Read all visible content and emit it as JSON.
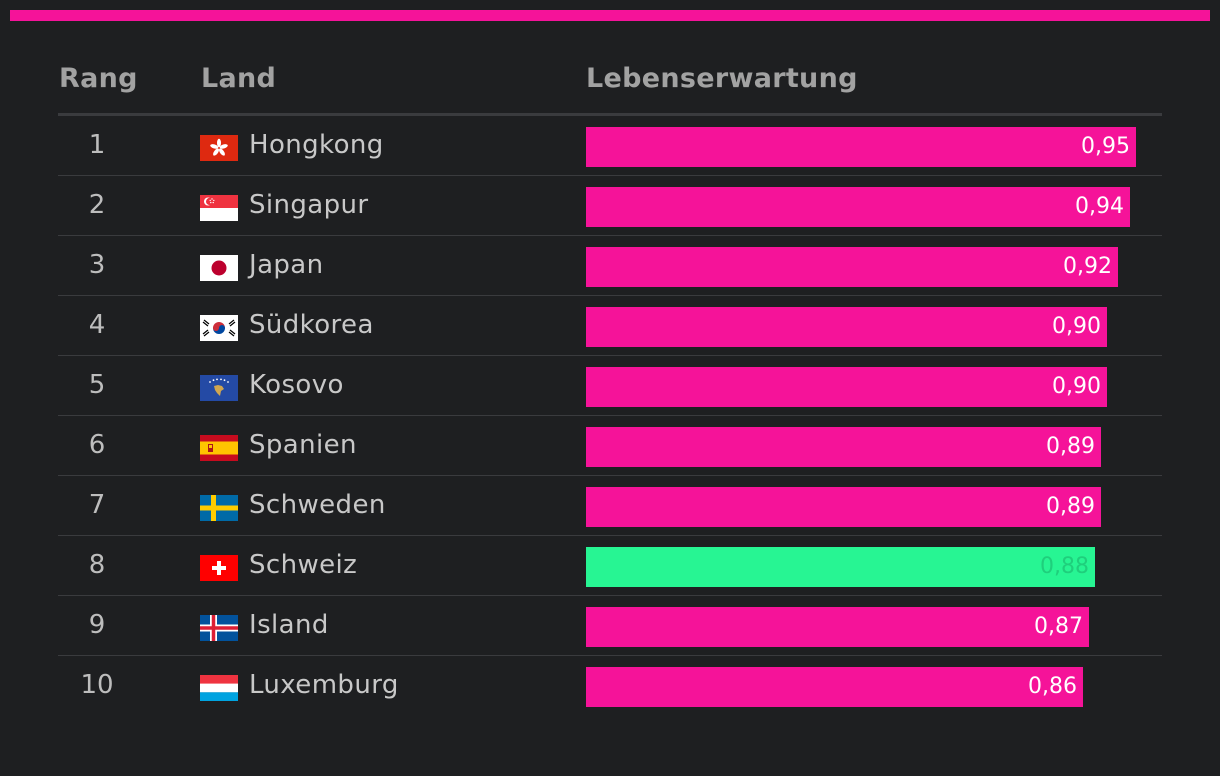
{
  "colors": {
    "accent": "#f51399",
    "highlight": "#27f593",
    "background": "#1e1f21",
    "highlight_label": "#1fcf7c"
  },
  "headers": {
    "rank": "Rang",
    "country": "Land",
    "value": "Lebenserwartung"
  },
  "chart_data": {
    "type": "bar",
    "orientation": "horizontal",
    "title": "",
    "xlabel": "Lebenserwartung",
    "ylabel": "Land",
    "xlim": [
      0,
      1.02
    ],
    "categories": [
      "Hongkong",
      "Singapur",
      "Japan",
      "Südkorea",
      "Kosovo",
      "Spanien",
      "Schweden",
      "Schweiz",
      "Island",
      "Luxemburg"
    ],
    "values": [
      0.95,
      0.94,
      0.92,
      0.9,
      0.9,
      0.89,
      0.89,
      0.88,
      0.87,
      0.86
    ],
    "highlighted": "Schweiz"
  },
  "rows": [
    {
      "rank": "1",
      "country": "Hongkong",
      "flag": "hongkong-flag-icon",
      "value": 0.95,
      "label": "0,95",
      "highlight": false
    },
    {
      "rank": "2",
      "country": "Singapur",
      "flag": "singapore-flag-icon",
      "value": 0.94,
      "label": "0,94",
      "highlight": false
    },
    {
      "rank": "3",
      "country": "Japan",
      "flag": "japan-flag-icon",
      "value": 0.92,
      "label": "0,92",
      "highlight": false
    },
    {
      "rank": "4",
      "country": "Südkorea",
      "flag": "south-korea-flag-icon",
      "value": 0.9,
      "label": "0,90",
      "highlight": false
    },
    {
      "rank": "5",
      "country": "Kosovo",
      "flag": "kosovo-flag-icon",
      "value": 0.9,
      "label": "0,90",
      "highlight": false
    },
    {
      "rank": "6",
      "country": "Spanien",
      "flag": "spain-flag-icon",
      "value": 0.89,
      "label": "0,89",
      "highlight": false
    },
    {
      "rank": "7",
      "country": "Schweden",
      "flag": "sweden-flag-icon",
      "value": 0.89,
      "label": "0,89",
      "highlight": false
    },
    {
      "rank": "8",
      "country": "Schweiz",
      "flag": "switzerland-flag-icon",
      "value": 0.88,
      "label": "0,88",
      "highlight": true
    },
    {
      "rank": "9",
      "country": "Island",
      "flag": "iceland-flag-icon",
      "value": 0.87,
      "label": "0,87",
      "highlight": false
    },
    {
      "rank": "10",
      "country": "Luxemburg",
      "flag": "luxembourg-flag-icon",
      "value": 0.86,
      "label": "0,86",
      "highlight": false
    }
  ]
}
